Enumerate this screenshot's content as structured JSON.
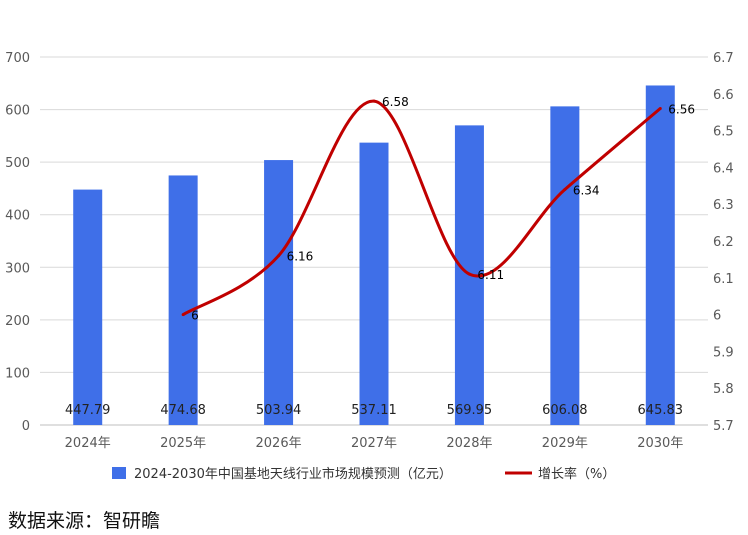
{
  "chart_data": {
    "type": "bar",
    "categories": [
      "2024年",
      "2025年",
      "2026年",
      "2027年",
      "2028年",
      "2029年",
      "2030年"
    ],
    "series": [
      {
        "name": "2024-2030年中国基地天线行业市场规模预测（亿元）",
        "type": "bar",
        "axis": "left",
        "values": [
          447.79,
          474.68,
          503.94,
          537.11,
          569.95,
          606.08,
          645.83
        ],
        "value_labels": [
          "447.79",
          "474.68",
          "503.94",
          "537.11",
          "569.95",
          "606.08",
          "645.83"
        ],
        "color": "#3F6FE8"
      },
      {
        "name": "增长率（%）",
        "type": "line",
        "axis": "right",
        "smooth": true,
        "values": [
          null,
          6,
          6.16,
          6.58,
          6.11,
          6.34,
          6.56
        ],
        "value_labels": [
          "",
          "6",
          "6.16",
          "6.58",
          "6.11",
          "6.34",
          "6.56"
        ],
        "color": "#C00000"
      }
    ],
    "y_left": {
      "min": 0,
      "max": 700,
      "ticks": [
        "0",
        "100",
        "200",
        "300",
        "400",
        "500",
        "600",
        "700"
      ]
    },
    "y_right": {
      "min": 5.7,
      "max": 6.7,
      "ticks": [
        "5.7",
        "5.8",
        "5.9",
        "6",
        "6.1",
        "6.2",
        "6.3",
        "6.4",
        "6.5",
        "6.6",
        "6.7"
      ]
    },
    "grid": true,
    "legend_position": "bottom"
  },
  "source": "数据来源：智研瞻"
}
